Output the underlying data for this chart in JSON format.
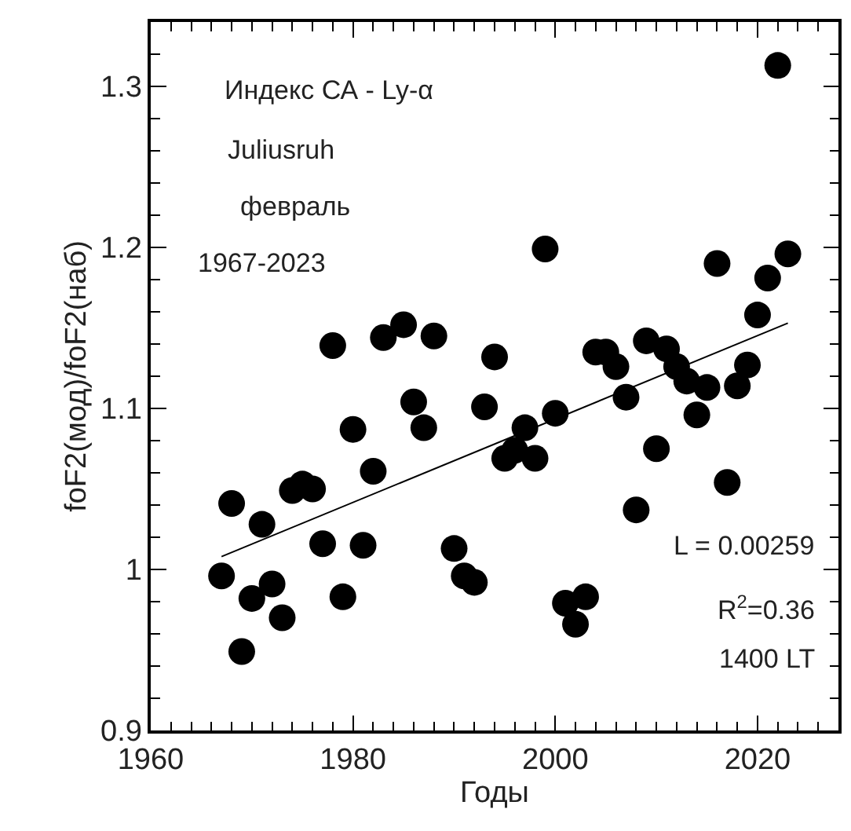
{
  "chart_data": {
    "type": "scatter",
    "xlabel": "Годы",
    "ylabel": "foF2(мод)/foF2(наб)",
    "xlim": [
      1960,
      2028
    ],
    "xticks": [
      1960,
      1980,
      2000,
      2020
    ],
    "ylim": [
      0.9,
      1.34
    ],
    "yticks": [
      {
        "value": 0.9,
        "label": "0.9"
      },
      1,
      1.1,
      1.2,
      1.3
    ],
    "marker": "circle",
    "legend": false,
    "series": [
      {
        "color": "#000000",
        "x": [
          1967,
          1968,
          1969,
          1970,
          1971,
          1972,
          1973,
          1974,
          1975,
          1976,
          1977,
          1978,
          1979,
          1980,
          1981,
          1982,
          1983,
          1985,
          1986,
          1987,
          1988,
          1990,
          1991,
          1992,
          1993,
          1994,
          1995,
          1996,
          1997,
          1998,
          1999,
          2000,
          2001,
          2002,
          2003,
          2004,
          2005,
          2006,
          2007,
          2008,
          2009,
          2010,
          2011,
          2012,
          2013,
          2014,
          2015,
          2016,
          2017,
          2018,
          2019,
          2020,
          2021,
          2022,
          2023
        ],
        "values": [
          0.996,
          1.041,
          0.949,
          0.982,
          1.028,
          0.991,
          0.97,
          1.049,
          1.053,
          1.05,
          1.016,
          1.139,
          0.983,
          1.087,
          1.015,
          1.061,
          1.144,
          1.152,
          1.104,
          1.088,
          1.145,
          1.013,
          0.996,
          0.992,
          1.101,
          1.132,
          1.069,
          1.074,
          1.088,
          1.069,
          1.199,
          1.097,
          0.979,
          0.966,
          0.983,
          1.135,
          1.135,
          1.126,
          1.107,
          1.037,
          1.142,
          1.075,
          1.137,
          1.126,
          1.117,
          1.096,
          1.113,
          1.19,
          1.054,
          1.114,
          1.127,
          1.158,
          1.181,
          1.313,
          1.196
        ]
      },
      {
        "type": "line",
        "marker": "none",
        "color": "#000000",
        "x": [
          1967,
          2023
        ],
        "values": [
          1.008,
          1.153
        ]
      }
    ],
    "annotations": [
      "Индекс СА - Ly-α",
      "Juliusruh",
      "февраль",
      "1967-2023",
      "L = 0.00259",
      "R$^{2}$=0.36",
      "1400 LT"
    ]
  }
}
